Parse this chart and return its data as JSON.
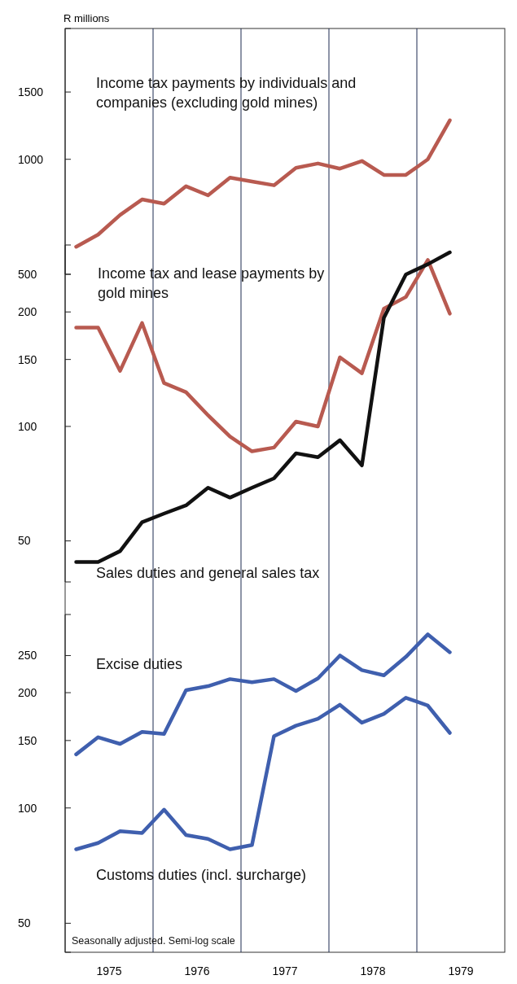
{
  "chart_data": [
    {
      "type": "line",
      "ylabel": "R millions",
      "log": true,
      "tick_labels": "y",
      "xlim": [
        1975,
        1980
      ],
      "ylim": [
        500,
        2200
      ],
      "yticks": [
        500,
        1000,
        1500
      ],
      "line_style": "solid",
      "marker": "none",
      "ref_lines": [
        {
          "axis": "x",
          "value": 1976,
          "color": "#1c2a50"
        },
        {
          "axis": "x",
          "value": 1977,
          "color": "#1c2a50"
        },
        {
          "axis": "x",
          "value": 1978,
          "color": "#1c2a50"
        },
        {
          "axis": "x",
          "value": 1979,
          "color": "#1c2a50"
        }
      ],
      "x": [
        1975.125,
        1975.375,
        1975.625,
        1975.875,
        1976.125,
        1976.375,
        1976.625,
        1976.875,
        1977.125,
        1977.375,
        1977.625,
        1977.875,
        1978.125,
        1978.375,
        1978.625,
        1978.875,
        1979.125,
        1979.375
      ],
      "series": [
        {
          "name": "Income tax payments by individuals and companies (excluding gold mines)",
          "color": "#b85a50",
          "values": [
            590,
            635,
            715,
            785,
            765,
            850,
            805,
            895,
            875,
            855,
            950,
            975,
            945,
            990,
            910,
            910,
            1000,
            1265
          ]
        }
      ]
    },
    {
      "type": "line",
      "log": true,
      "tick_labels": "y",
      "xlim": [
        1975,
        1980
      ],
      "ylim": [
        39,
        300
      ],
      "yticks": [
        50,
        100,
        150,
        200
      ],
      "line_style": "solid",
      "marker": "none",
      "x": [
        1975.125,
        1975.375,
        1975.625,
        1975.875,
        1976.125,
        1976.375,
        1976.625,
        1976.875,
        1977.125,
        1977.375,
        1977.625,
        1977.875,
        1978.125,
        1978.375,
        1978.625,
        1978.875,
        1979.125,
        1979.375
      ],
      "series": [
        {
          "name": "Income tax and lease payments by gold mines",
          "color": "#b85a50",
          "values": [
            182,
            182,
            140,
            187,
            130,
            123,
            107,
            94,
            86,
            88,
            103,
            100,
            152,
            138,
            204,
            219,
            274,
            198
          ]
        },
        {
          "name": "Sales duties and general sales tax",
          "color": "#111111",
          "values": [
            44,
            44,
            47,
            56,
            59,
            62,
            69,
            65,
            69,
            73,
            85,
            83,
            92,
            79,
            193,
            251,
            267,
            287
          ]
        }
      ]
    },
    {
      "type": "line",
      "log": true,
      "xlim": [
        1975,
        1980
      ],
      "ylim": [
        42,
        320
      ],
      "yticks": [
        50,
        100,
        150,
        200,
        250
      ],
      "xticks": [
        {
          "value": 1975.5,
          "label": "1975"
        },
        {
          "value": 1976.5,
          "label": "1976"
        },
        {
          "value": 1977.5,
          "label": "1977"
        },
        {
          "value": 1978.5,
          "label": "1978"
        },
        {
          "value": 1979.5,
          "label": "1979"
        }
      ],
      "line_style": "solid",
      "marker": "none",
      "annotations": [
        "Seasonally adjusted. Semi-log scale"
      ],
      "x": [
        1975.125,
        1975.375,
        1975.625,
        1975.875,
        1976.125,
        1976.375,
        1976.625,
        1976.875,
        1977.125,
        1977.375,
        1977.625,
        1977.875,
        1978.125,
        1978.375,
        1978.625,
        1978.875,
        1979.125,
        1979.375
      ],
      "series": [
        {
          "name": "Excise duties",
          "color": "#3f5fae",
          "values": [
            138,
            153,
            147,
            158,
            156,
            203,
            208,
            217,
            213,
            217,
            202,
            218,
            250,
            229,
            222,
            248,
            284,
            255
          ]
        },
        {
          "name": "Customs duties (incl. surcharge)",
          "color": "#3f5fae",
          "values": [
            78,
            81,
            87,
            86,
            99,
            85,
            83,
            78,
            80,
            154,
            164,
            171,
            186,
            167,
            176,
            194,
            185,
            157
          ]
        }
      ]
    }
  ]
}
